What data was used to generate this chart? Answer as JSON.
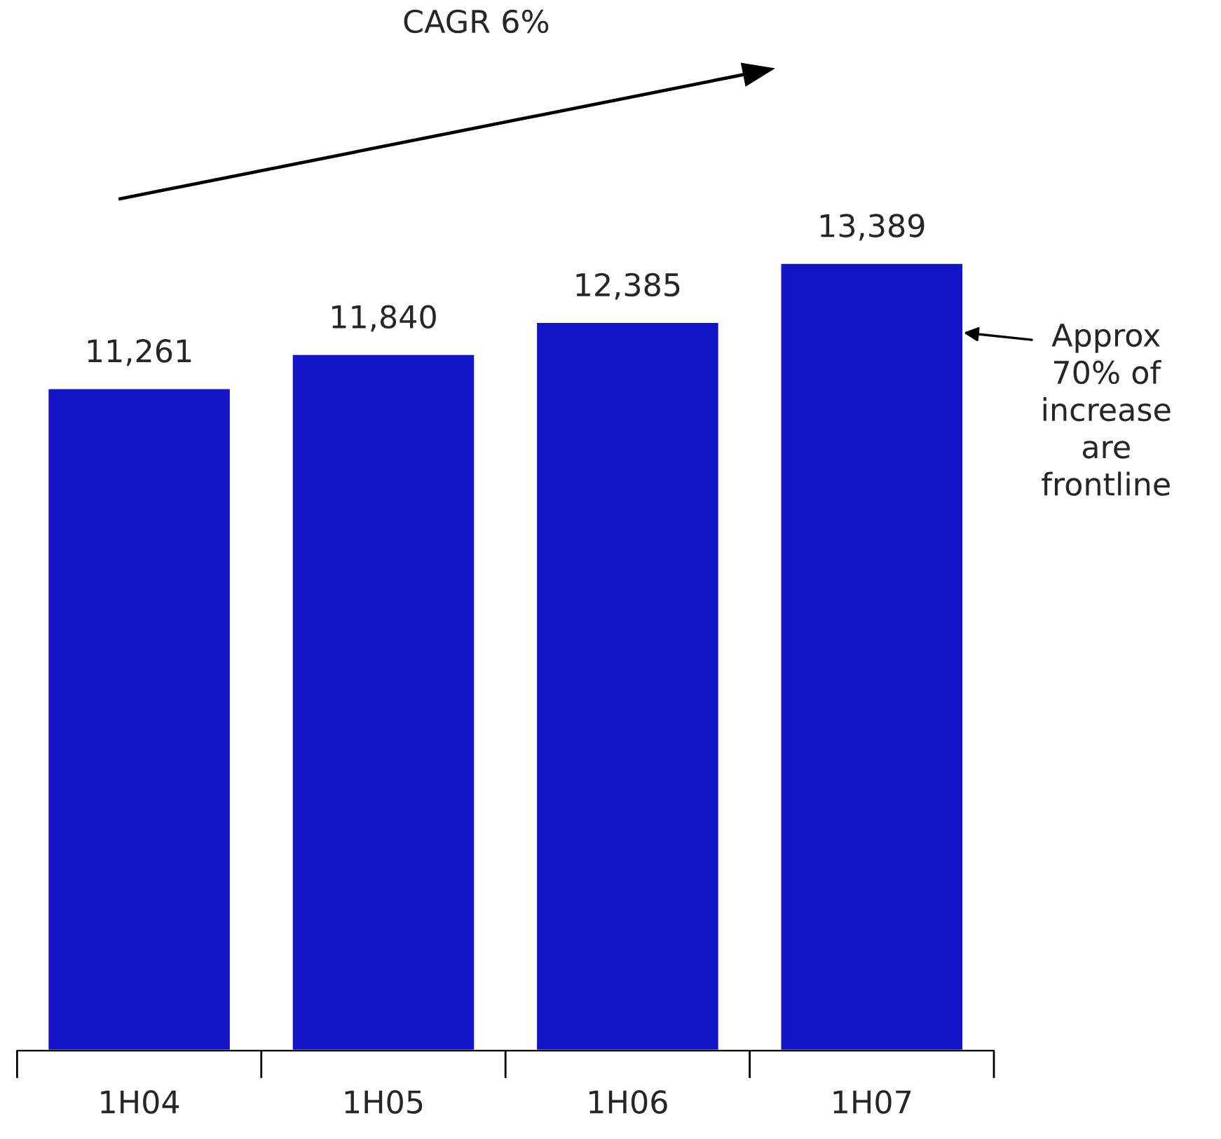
{
  "chart_data": {
    "type": "bar",
    "categories": [
      "1H04",
      "1H05",
      "1H06",
      "1H07"
    ],
    "values": [
      11261,
      11840,
      12385,
      13389
    ],
    "value_labels": [
      "11,261",
      "11,840",
      "12,385",
      "13,389"
    ],
    "color": "#1414c8",
    "annotations": [
      "CAGR 6%",
      "Approx\n70% of\nincrease\nare\nfrontline"
    ]
  }
}
